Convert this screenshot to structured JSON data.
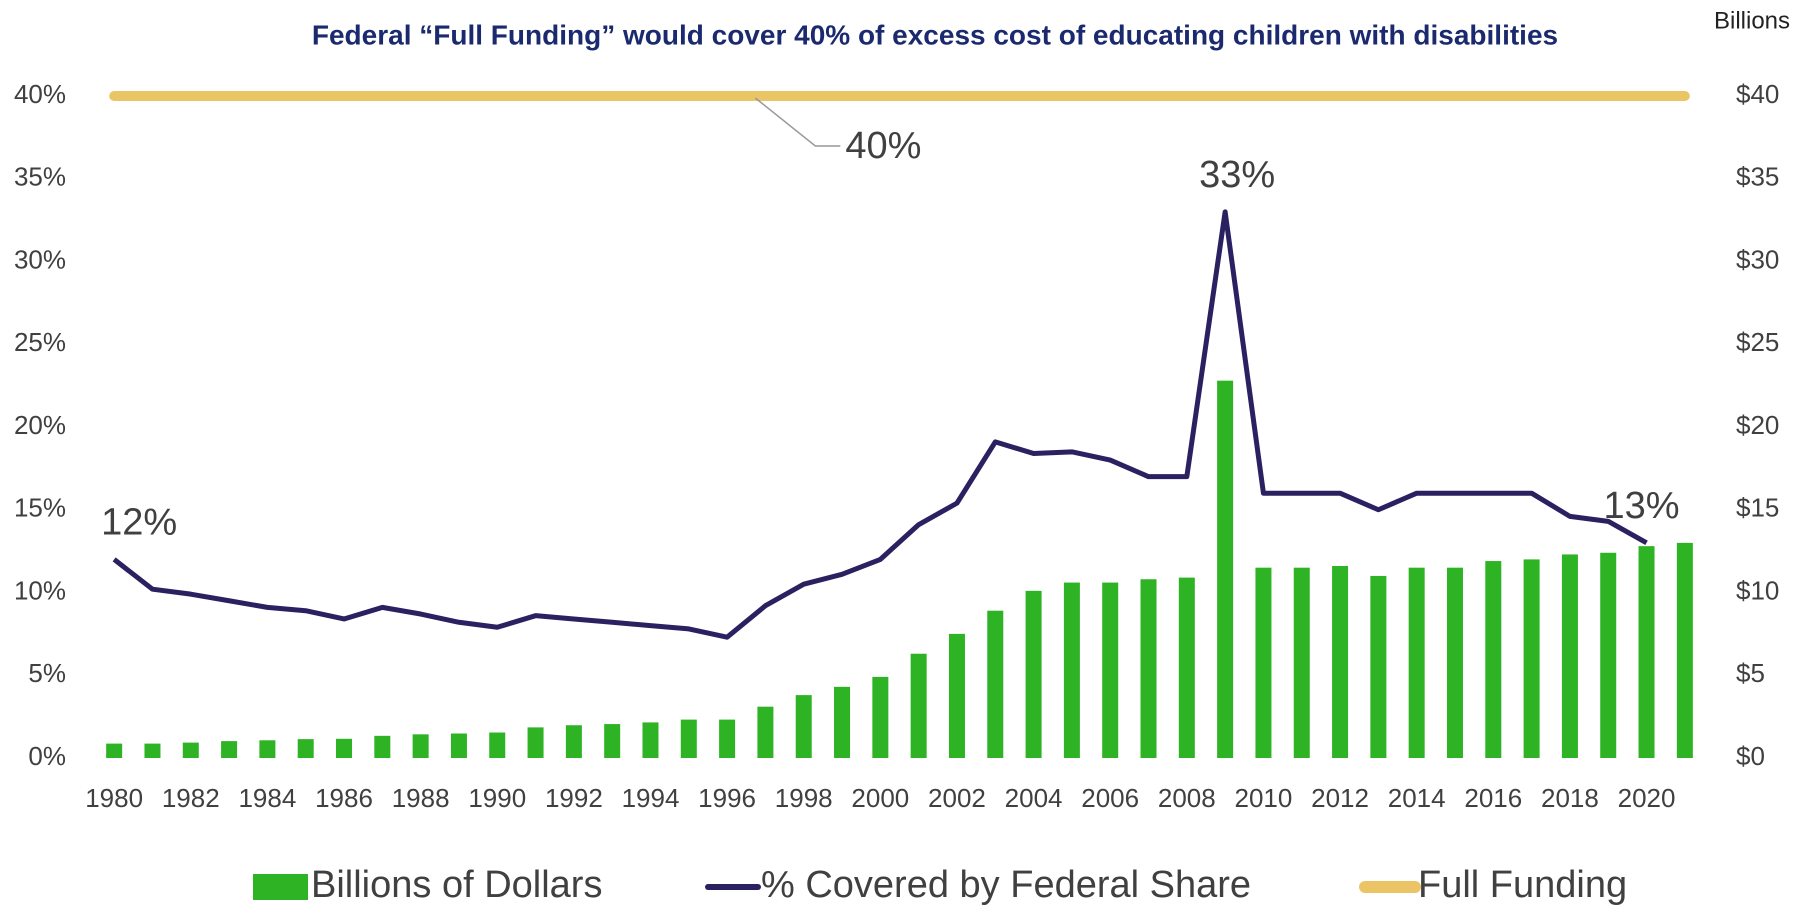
{
  "chart_data": {
    "type": "combo",
    "title": "Federal “Full Funding” would cover 40% of excess cost of educating children with disabilities",
    "y2label": "Billions",
    "x": [
      1980,
      1981,
      1982,
      1983,
      1984,
      1985,
      1986,
      1987,
      1988,
      1989,
      1990,
      1991,
      1992,
      1993,
      1994,
      1995,
      1996,
      1997,
      1998,
      1999,
      2000,
      2001,
      2002,
      2003,
      2004,
      2005,
      2006,
      2007,
      2008,
      2009,
      2010,
      2011,
      2012,
      2013,
      2014,
      2015,
      2016,
      2017,
      2018,
      2019,
      2020,
      2021
    ],
    "xlim": [
      1979.5,
      2021.5
    ],
    "xticks": [
      1980,
      1982,
      1984,
      1986,
      1988,
      1990,
      1992,
      1994,
      1996,
      1998,
      2000,
      2002,
      2004,
      2006,
      2008,
      2010,
      2012,
      2014,
      2016,
      2018,
      2020
    ],
    "ylim": [
      0,
      40
    ],
    "yticks": [
      {
        "value": 0,
        "label": "0%"
      },
      {
        "value": 5,
        "label": "5%"
      },
      {
        "value": 10,
        "label": "10%"
      },
      {
        "value": 15,
        "label": "15%"
      },
      {
        "value": 20,
        "label": "20%"
      },
      {
        "value": 25,
        "label": "25%"
      },
      {
        "value": 30,
        "label": "30%"
      },
      {
        "value": 35,
        "label": "35%"
      },
      {
        "value": 40,
        "label": "40%"
      }
    ],
    "y2lim": [
      0,
      40
    ],
    "y2ticks": [
      {
        "value": 0,
        "label": "$0"
      },
      {
        "value": 5,
        "label": "$5"
      },
      {
        "value": 10,
        "label": "$10"
      },
      {
        "value": 15,
        "label": "$15"
      },
      {
        "value": 20,
        "label": "$20"
      },
      {
        "value": 25,
        "label": "$25"
      },
      {
        "value": 30,
        "label": "$30"
      },
      {
        "value": 35,
        "label": "$35"
      },
      {
        "value": 40,
        "label": "$40"
      }
    ],
    "series": [
      {
        "name": "Billions of Dollars",
        "type": "bar",
        "axis": "y2",
        "color": "#2db324",
        "values": [
          0.87,
          0.87,
          0.93,
          1.02,
          1.07,
          1.14,
          1.16,
          1.34,
          1.43,
          1.48,
          1.54,
          1.85,
          1.98,
          2.05,
          2.15,
          2.32,
          2.32,
          3.1,
          3.8,
          4.3,
          4.9,
          6.3,
          7.5,
          8.9,
          10.1,
          10.6,
          10.6,
          10.8,
          10.9,
          22.8,
          11.5,
          11.5,
          11.6,
          11.0,
          11.5,
          11.5,
          11.9,
          12.0,
          12.3,
          12.4,
          12.8,
          13.0
        ]
      },
      {
        "name": "% Covered by Federal Share",
        "type": "line",
        "color": "#2a2161",
        "values": [
          12,
          10.2,
          9.9,
          9.5,
          9.1,
          8.9,
          8.4,
          9.1,
          8.7,
          8.2,
          7.9,
          8.6,
          8.4,
          8.2,
          8.0,
          7.8,
          7.3,
          9.2,
          10.5,
          11.1,
          12.0,
          14.1,
          15.4,
          19.1,
          18.4,
          18.5,
          18.0,
          17.0,
          17.0,
          33,
          16,
          16,
          16,
          15,
          16,
          16,
          16,
          16,
          14.6,
          14.3,
          13,
          null
        ],
        "value_labels": [
          "12%",
          null,
          null,
          null,
          null,
          null,
          null,
          null,
          null,
          null,
          null,
          null,
          null,
          null,
          null,
          null,
          null,
          null,
          null,
          null,
          null,
          null,
          null,
          null,
          null,
          null,
          null,
          null,
          null,
          "33%",
          null,
          null,
          null,
          null,
          null,
          null,
          null,
          null,
          null,
          null,
          "13%",
          null
        ]
      },
      {
        "name": "Full Funding",
        "type": "line",
        "color": "#ebc565",
        "values": [
          40,
          40,
          40,
          40,
          40,
          40,
          40,
          40,
          40,
          40,
          40,
          40,
          40,
          40,
          40,
          40,
          40,
          40,
          40,
          40,
          40,
          40,
          40,
          40,
          40,
          40,
          40,
          40,
          40,
          40,
          40,
          40,
          40,
          40,
          40,
          40,
          40,
          40,
          40,
          40,
          40,
          40
        ],
        "value_labels": [
          null,
          null,
          null,
          null,
          null,
          null,
          null,
          null,
          null,
          null,
          null,
          null,
          null,
          null,
          null,
          null,
          null,
          null,
          null,
          null,
          "40%",
          null,
          null,
          null,
          null,
          null,
          null,
          null,
          null,
          null,
          null,
          null,
          null,
          null,
          null,
          null,
          null,
          null,
          null,
          null,
          null,
          null
        ]
      }
    ]
  }
}
